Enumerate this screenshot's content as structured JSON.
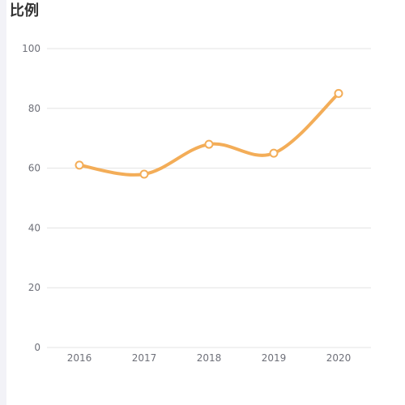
{
  "chart_data": {
    "type": "line",
    "title": "比例",
    "x": [
      "2016",
      "2017",
      "2018",
      "2019",
      "2020"
    ],
    "series": [
      {
        "values": [
          61,
          58,
          68,
          65,
          85
        ],
        "color": "#f3ad58"
      }
    ],
    "ylim": [
      0,
      100
    ],
    "yticks": [
      "0",
      "20",
      "40",
      "60",
      "80",
      "100"
    ],
    "grid": true,
    "smooth": true,
    "colors": {
      "line": "#f3ad58",
      "grid": "#e3e3e3",
      "axis_text": "#6e7079",
      "point_fill": "#ffffff"
    }
  }
}
